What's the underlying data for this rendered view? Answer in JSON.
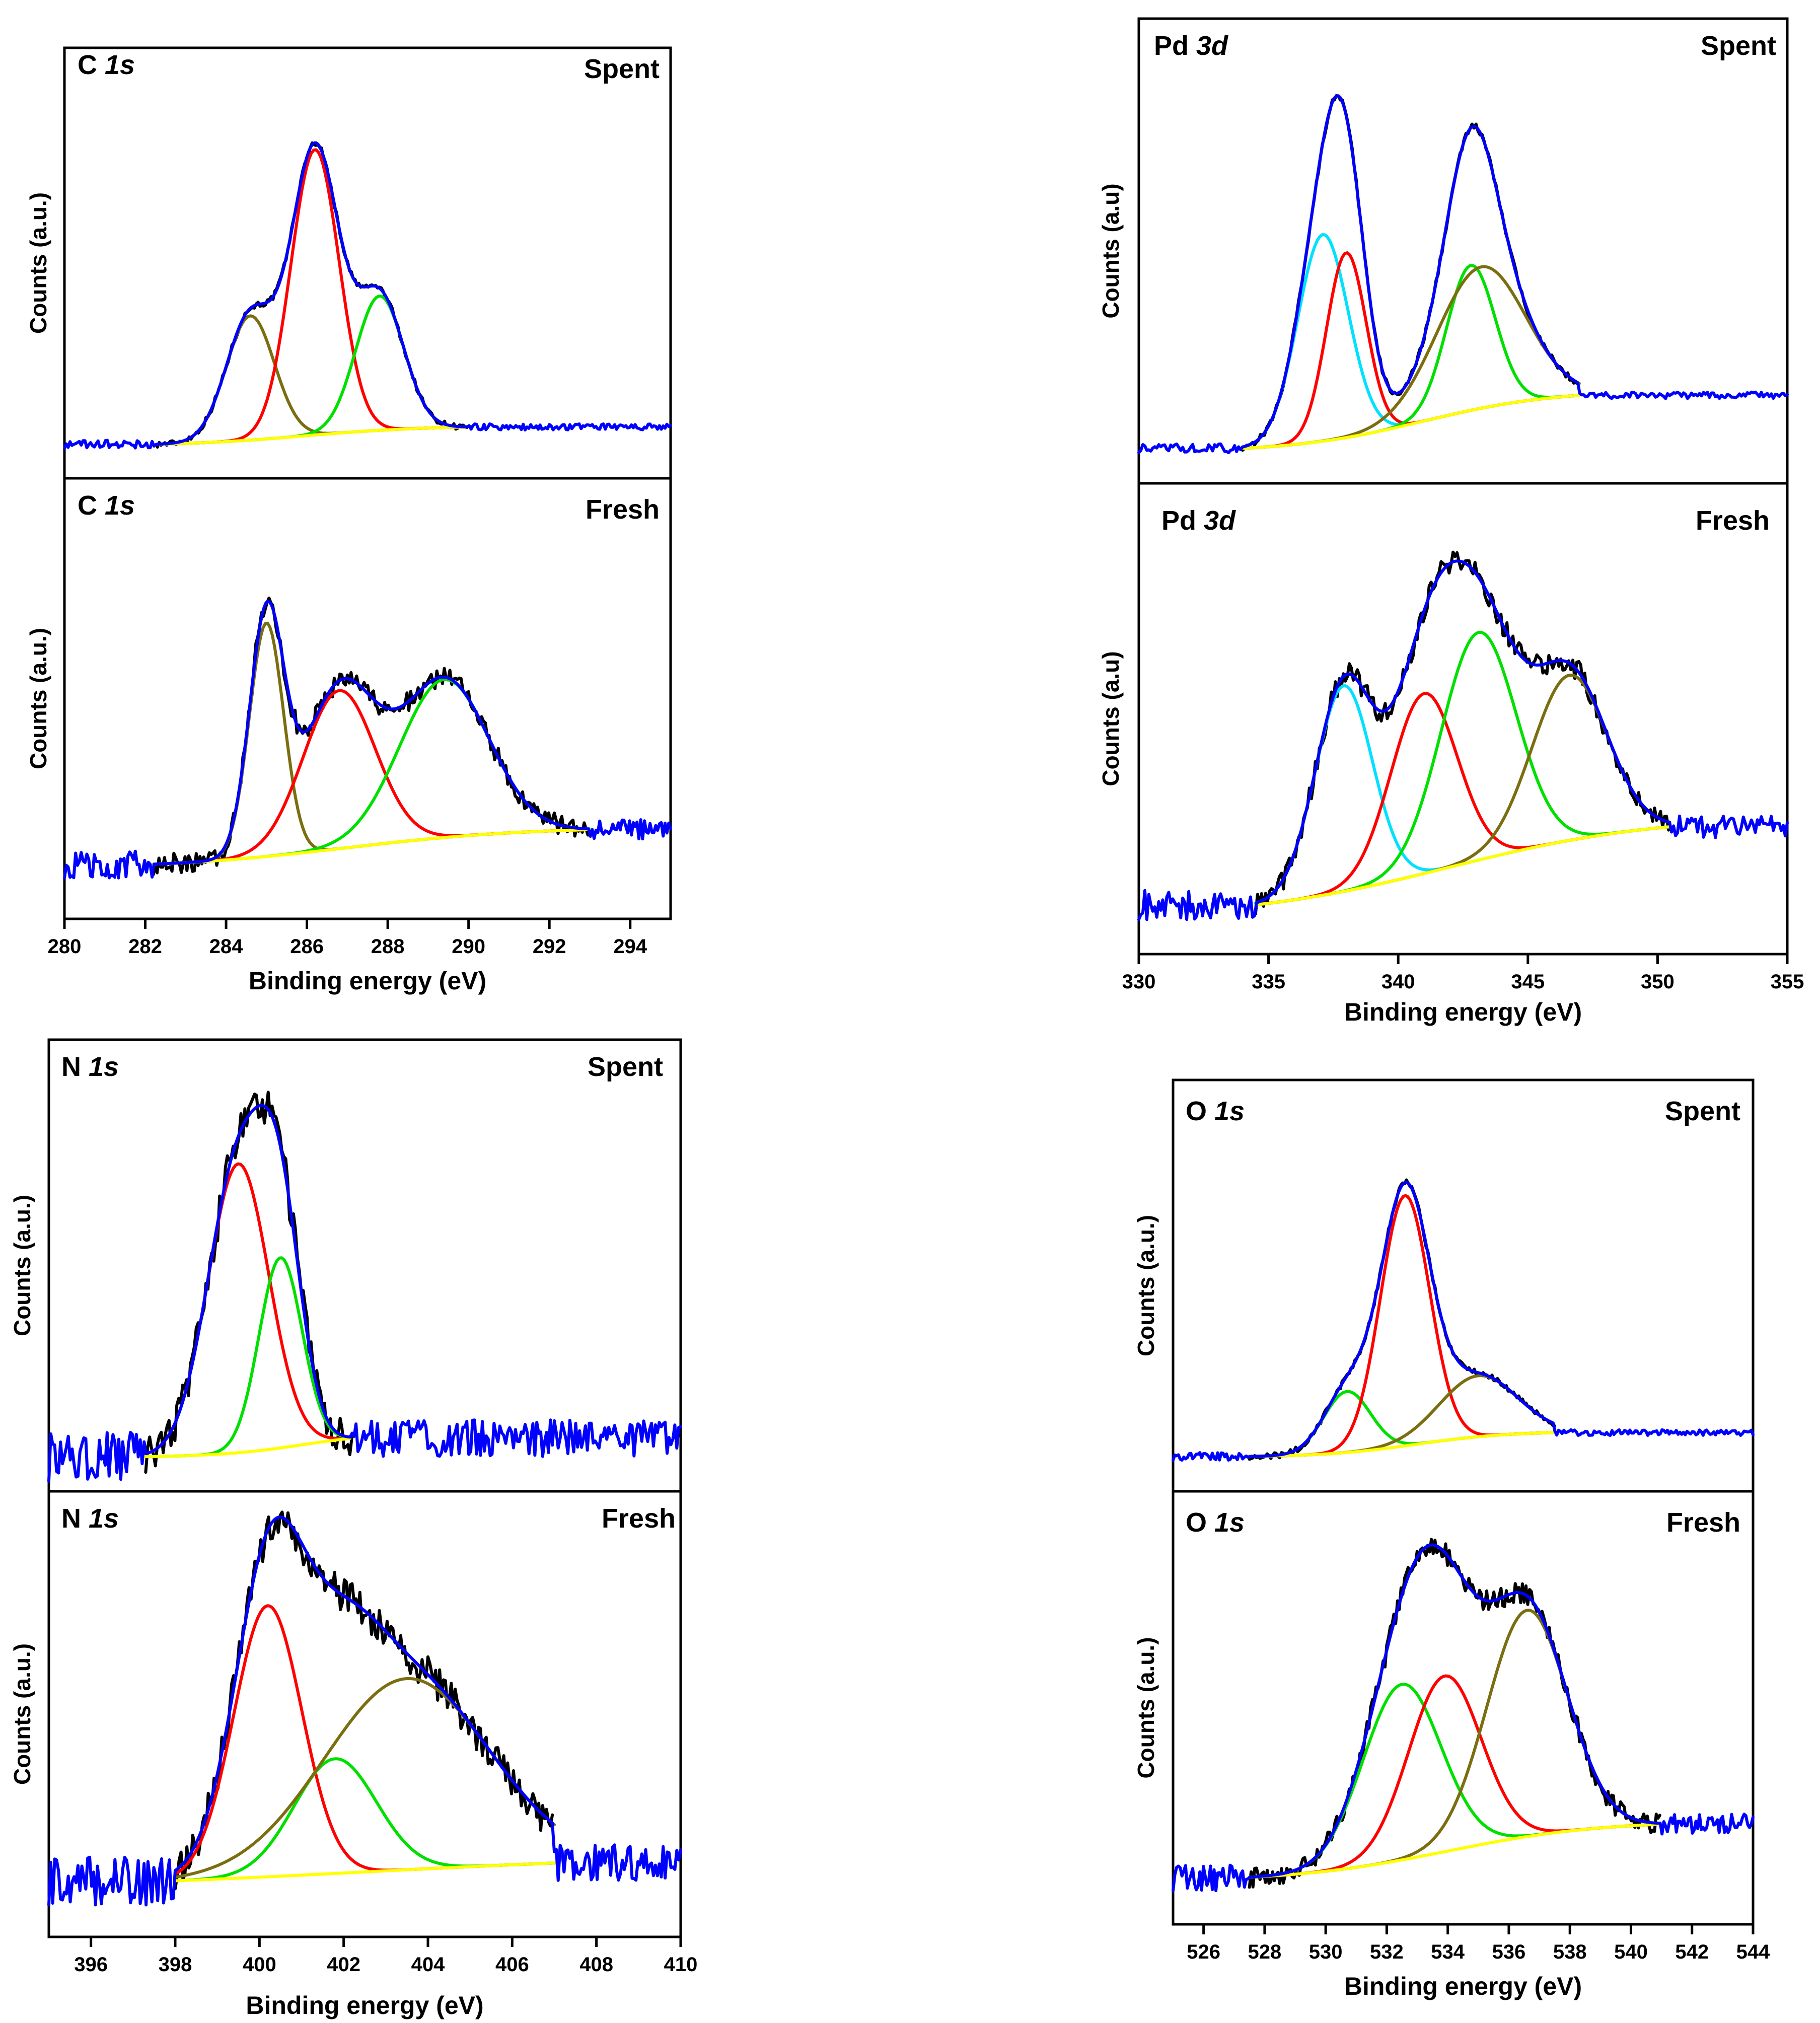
{
  "figure": {
    "y_axis_label": "Counts (a.u.)",
    "x_axis_label": "Binding energy (eV)"
  },
  "chart_data": [
    {
      "type": "line",
      "title": "C 1s",
      "element": "C",
      "orbital": "1s",
      "xlabel": "Binding energy (eV)",
      "ylabel": "Counts (a.u.)",
      "xlim": [
        280,
        295
      ],
      "xticks": [
        280,
        282,
        284,
        286,
        288,
        290,
        292,
        294
      ],
      "panels": [
        {
          "condition": "Spent",
          "ylabel": "Counts (a.u.)",
          "xrange": [
            280,
            295
          ],
          "background": {
            "a": 0.02,
            "b": 0.06,
            "center": 286.0,
            "width": 1.5,
            "x0": 282.3,
            "x1": 290.0
          },
          "components": [
            {
              "color": "#7a6e10",
              "center": 284.6,
              "fwhm": 1.4,
              "height": 0.37,
              "x0": 282.3,
              "x1": 290.0
            },
            {
              "color": "#ff0000",
              "center": 286.2,
              "fwhm": 1.4,
              "height": 0.85,
              "x0": 282.3,
              "x1": 290.0
            },
            {
              "color": "#00e000",
              "center": 287.8,
              "fwhm": 1.4,
              "height": 0.4,
              "x0": 282.3,
              "x1": 290.0
            }
          ],
          "noise": 0.006
        },
        {
          "condition": "Fresh",
          "ylabel": "Counts (a.u.)",
          "xrange": [
            280,
            295
          ],
          "background": {
            "a": 0.07,
            "b": 0.12,
            "center": 287.0,
            "width": 2.2,
            "x0": 282.2,
            "x1": 293.0
          },
          "components": [
            {
              "color": "#7a6e10",
              "center": 285.0,
              "fwhm": 1.0,
              "height": 0.68,
              "x0": 282.2,
              "x1": 293.0
            },
            {
              "color": "#ff0000",
              "center": 286.8,
              "fwhm": 2.1,
              "height": 0.46,
              "x0": 282.2,
              "x1": 293.0
            },
            {
              "color": "#00e000",
              "center": 289.4,
              "fwhm": 2.6,
              "height": 0.46,
              "x0": 282.2,
              "x1": 293.0
            }
          ],
          "noise": 0.02
        }
      ]
    },
    {
      "type": "line",
      "title": "Pd 3d",
      "element": "Pd",
      "orbital": "3d",
      "xlabel": "Binding energy (eV)",
      "ylabel": "Counts (a.u)",
      "xlim": [
        330,
        355
      ],
      "xticks": [
        330,
        335,
        340,
        345,
        350,
        355
      ],
      "panels": [
        {
          "condition": "Spent",
          "ylabel": "Counts (a.u)",
          "xrange": [
            330,
            355
          ],
          "background": {
            "a": 0.01,
            "b": 0.17,
            "center": 341.0,
            "width": 2.5,
            "x0": 334.0,
            "x1": 347.0
          },
          "components": [
            {
              "color": "#00e0ff",
              "center": 337.1,
              "fwhm": 2.3,
              "height": 0.57,
              "x0": 334.0,
              "x1": 347.0
            },
            {
              "color": "#ff0000",
              "center": 338.0,
              "fwhm": 1.8,
              "height": 0.51,
              "x0": 334.0,
              "x1": 347.0
            },
            {
              "color": "#00e000",
              "center": 342.8,
              "fwhm": 2.2,
              "height": 0.4,
              "x0": 334.0,
              "x1": 347.0
            },
            {
              "color": "#7a6e10",
              "center": 343.2,
              "fwhm": 4.0,
              "height": 0.39,
              "x0": 334.0,
              "x1": 347.0
            }
          ],
          "noise": 0.006
        },
        {
          "condition": "Fresh",
          "ylabel": "Counts (a.u)",
          "xrange": [
            330,
            355
          ],
          "background": {
            "a": 0.02,
            "b": 0.28,
            "center": 342.0,
            "width": 4.0,
            "x0": 334.5,
            "x1": 350.5
          },
          "components": [
            {
              "color": "#00e0ff",
              "center": 337.9,
              "fwhm": 2.6,
              "height": 0.56,
              "x0": 334.5,
              "x1": 350.5
            },
            {
              "color": "#ff0000",
              "center": 341.0,
              "fwhm": 3.0,
              "height": 0.49,
              "x0": 334.5,
              "x1": 350.5
            },
            {
              "color": "#00e000",
              "center": 343.1,
              "fwhm": 3.4,
              "height": 0.62,
              "x0": 334.5,
              "x1": 350.5
            },
            {
              "color": "#7a6e10",
              "center": 346.6,
              "fwhm": 3.4,
              "height": 0.45,
              "x0": 334.5,
              "x1": 350.5
            }
          ],
          "noise": 0.02
        }
      ]
    },
    {
      "type": "line",
      "title": "N 1s",
      "element": "N",
      "orbital": "1s",
      "xlabel": "Binding energy (eV)",
      "ylabel": "Counts (a.u.)",
      "xlim": [
        395,
        410
      ],
      "xticks": [
        396,
        398,
        400,
        402,
        404,
        406,
        408,
        410
      ],
      "panels": [
        {
          "condition": "Spent",
          "ylabel": "Counts (a.u.)",
          "xrange": [
            395,
            410
          ],
          "background": {
            "a": 0.02,
            "b": 0.07,
            "center": 401.0,
            "width": 1.0,
            "x0": 397.3,
            "x1": 402.2
          },
          "components": [
            {
              "color": "#ff0000",
              "center": 399.5,
              "fwhm": 1.7,
              "height": 0.82,
              "x0": 397.3,
              "x1": 402.2
            },
            {
              "color": "#00e000",
              "center": 400.5,
              "fwhm": 1.2,
              "height": 0.54,
              "x0": 397.3,
              "x1": 402.2
            }
          ],
          "noise": 0.035
        },
        {
          "condition": "Fresh",
          "ylabel": "Counts (a.u.)",
          "xrange": [
            395,
            410
          ],
          "background": {
            "a": 0.06,
            "b": 0.1,
            "center": 402.5,
            "width": 4.0,
            "x0": 398.0,
            "x1": 407.0
          },
          "components": [
            {
              "color": "#ff0000",
              "center": 400.2,
              "fwhm": 1.9,
              "height": 0.78,
              "x0": 398.0,
              "x1": 407.0
            },
            {
              "color": "#00e000",
              "center": 401.8,
              "fwhm": 2.3,
              "height": 0.33,
              "x0": 398.0,
              "x1": 407.0
            },
            {
              "color": "#7a6e10",
              "center": 403.5,
              "fwhm": 4.6,
              "height": 0.55,
              "x0": 398.0,
              "x1": 407.0
            }
          ],
          "noise": 0.035
        }
      ]
    },
    {
      "type": "line",
      "title": "O 1s",
      "element": "O",
      "orbital": "1s",
      "xlabel": "Binding energy (eV)",
      "ylabel": "Counts (a.u.)",
      "xlim": [
        525,
        544
      ],
      "xticks": [
        526,
        528,
        530,
        532,
        534,
        536,
        538,
        540,
        542,
        544
      ],
      "panels": [
        {
          "condition": "Spent",
          "ylabel": "Counts (a.u.)",
          "xrange": [
            525,
            544
          ],
          "background": {
            "a": 0.03,
            "b": 0.08,
            "center": 533.0,
            "width": 1.5,
            "x0": 527.5,
            "x1": 537.5
          },
          "components": [
            {
              "color": "#00e000",
              "center": 530.7,
              "fwhm": 1.8,
              "height": 0.19,
              "x0": 527.5,
              "x1": 537.5
            },
            {
              "color": "#ff0000",
              "center": 532.6,
              "fwhm": 1.9,
              "height": 0.78,
              "x0": 527.5,
              "x1": 537.5
            },
            {
              "color": "#7a6e10",
              "center": 535.0,
              "fwhm": 3.0,
              "height": 0.19,
              "x0": 527.5,
              "x1": 537.5
            }
          ],
          "noise": 0.006
        },
        {
          "condition": "Fresh",
          "ylabel": "Counts (a.u.)",
          "xrange": [
            525,
            544
          ],
          "background": {
            "a": 0.05,
            "b": 0.18,
            "center": 534.0,
            "width": 2.5,
            "x0": 527.5,
            "x1": 541.0
          },
          "components": [
            {
              "color": "#00e000",
              "center": 532.5,
              "fwhm": 3.0,
              "height": 0.52,
              "x0": 527.5,
              "x1": 541.0
            },
            {
              "color": "#ff0000",
              "center": 533.9,
              "fwhm": 2.8,
              "height": 0.52,
              "x0": 527.5,
              "x1": 541.0
            },
            {
              "color": "#7a6e10",
              "center": 536.6,
              "fwhm": 3.1,
              "height": 0.67,
              "x0": 527.5,
              "x1": 541.0
            }
          ],
          "noise": 0.02
        }
      ]
    }
  ],
  "colors": {
    "raw": "#000000",
    "envelope": "#0000ff",
    "background": "#ffff00"
  }
}
